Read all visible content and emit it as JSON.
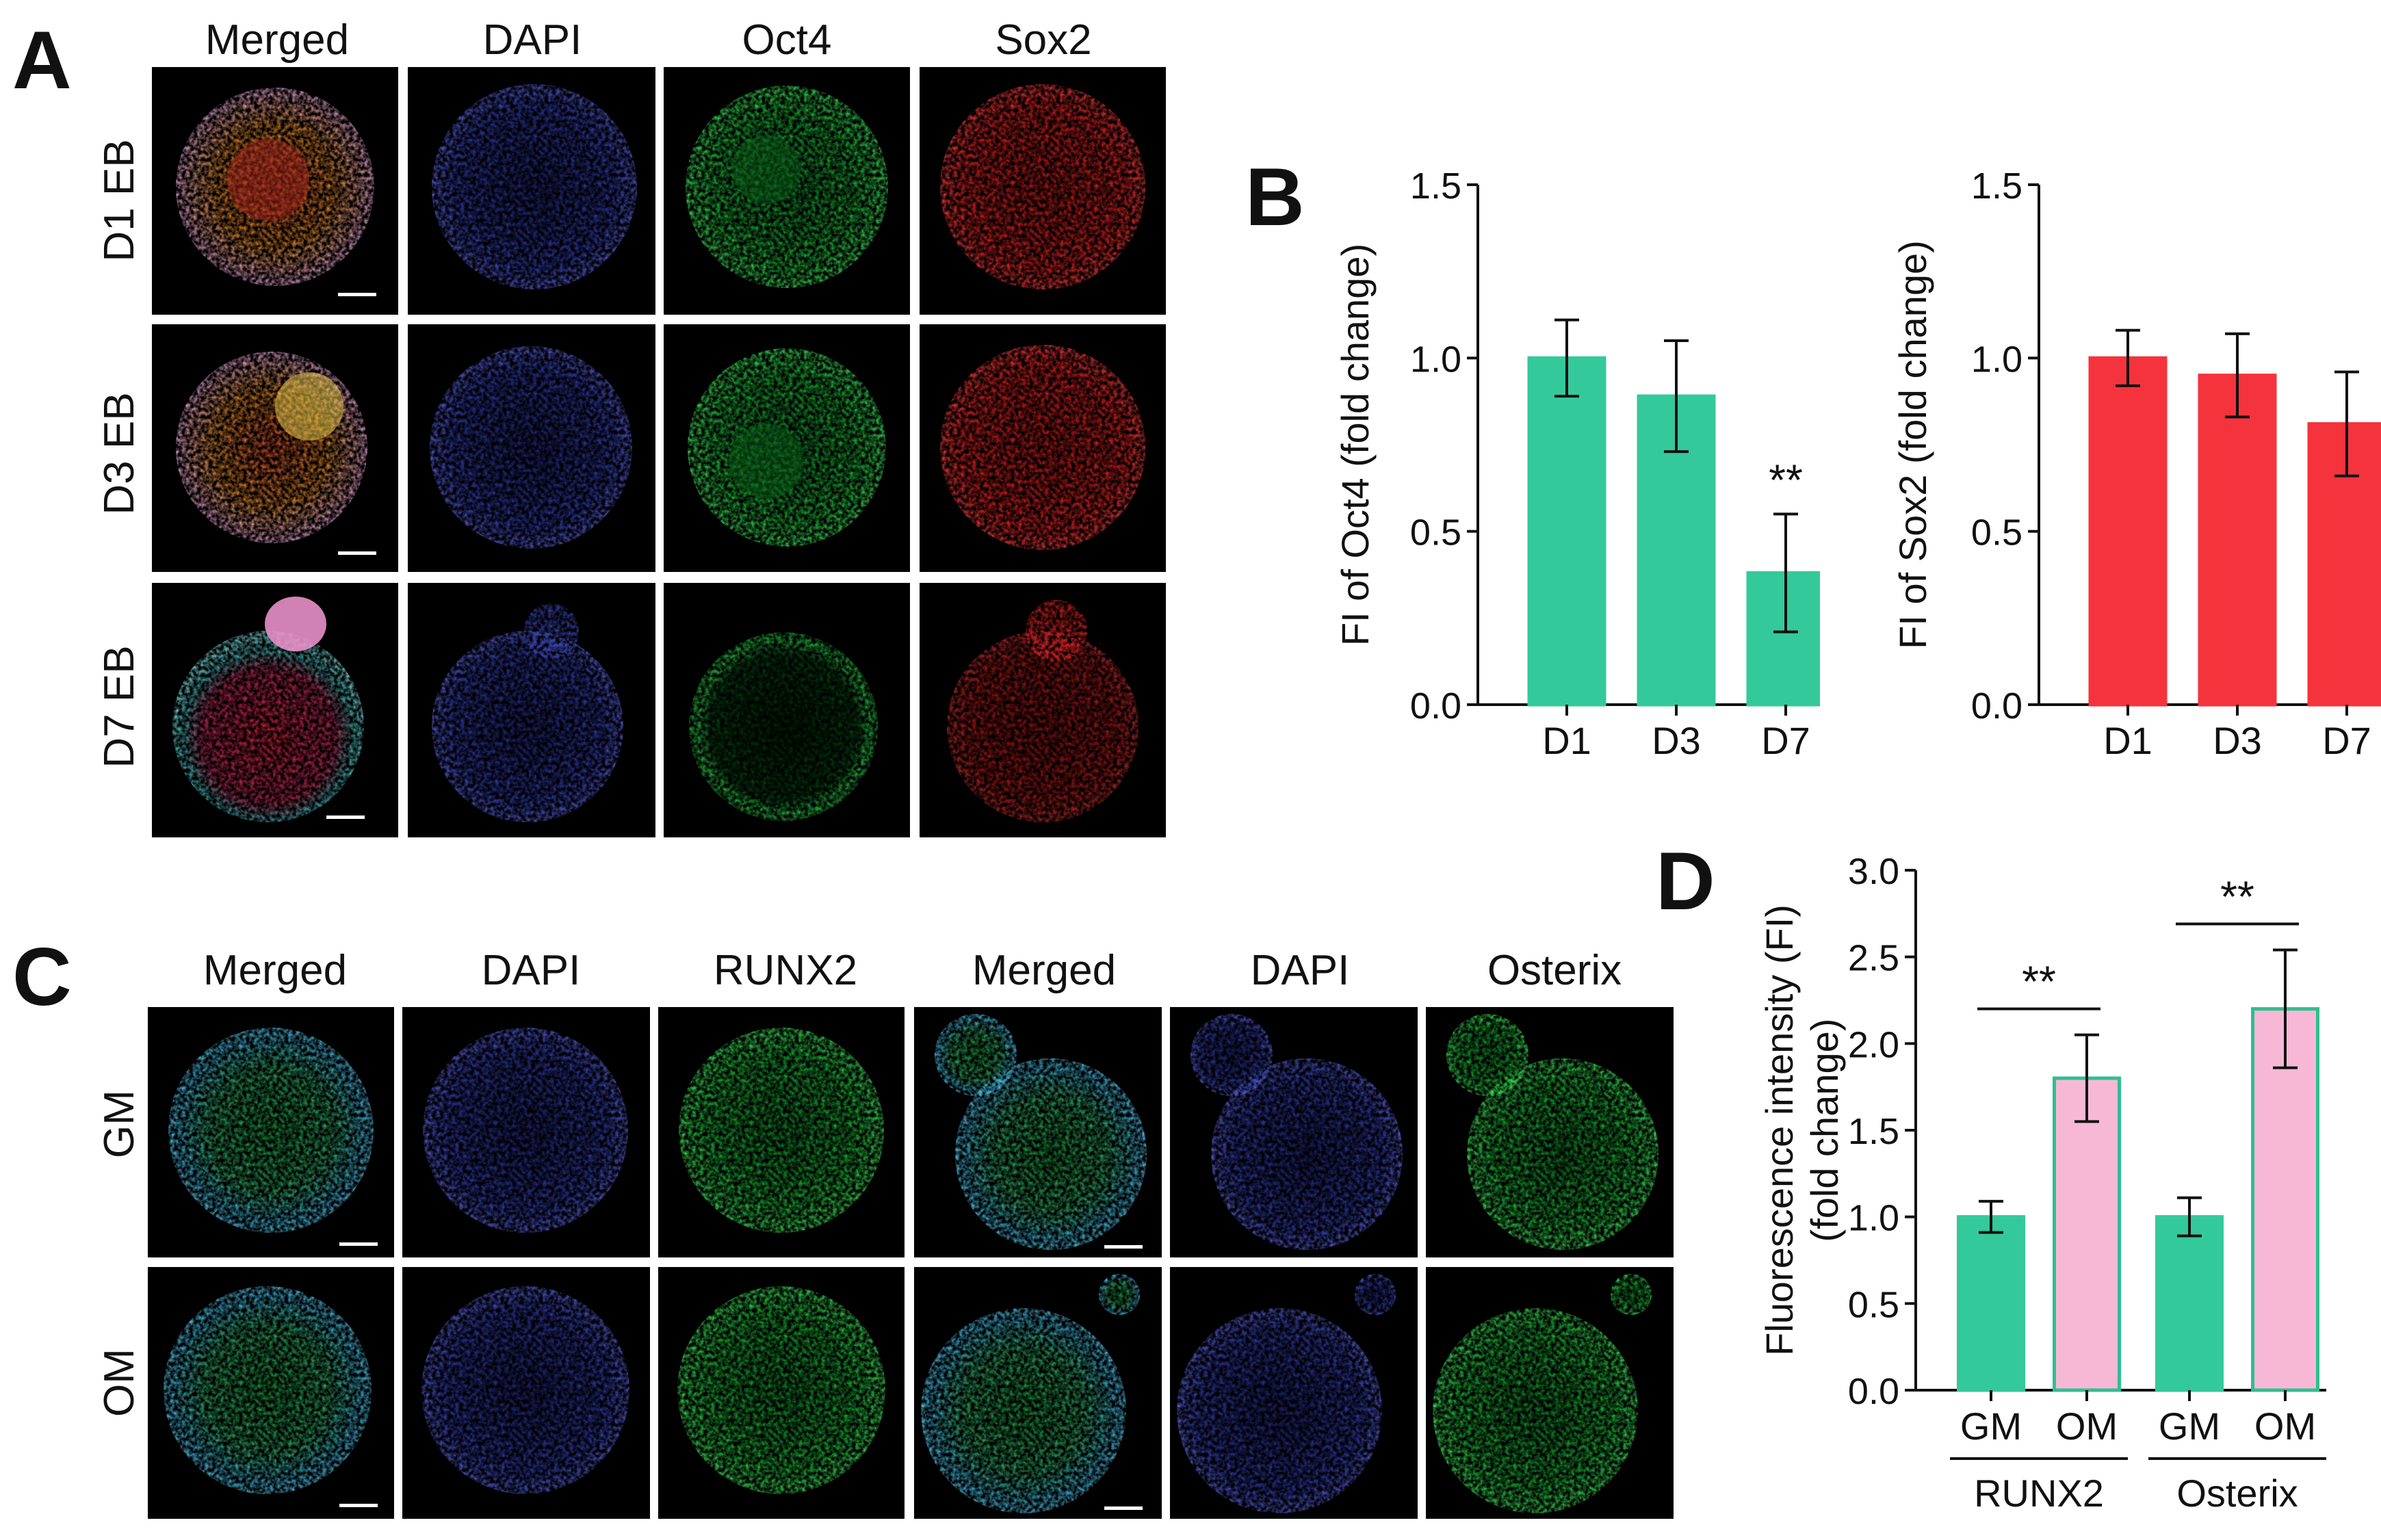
{
  "panel_labels": {
    "a": "A",
    "b": "B",
    "c": "C",
    "d": "D"
  },
  "panel_a": {
    "columns": [
      "Merged",
      "DAPI",
      "Oct4",
      "Sox2"
    ],
    "rows": [
      "D1 EB",
      "D3 EB",
      "D7 EB"
    ]
  },
  "panel_c": {
    "columns": [
      "Merged",
      "DAPI",
      "RUNX2",
      "Merged",
      "DAPI",
      "Osterix"
    ],
    "rows": [
      "GM",
      "OM"
    ]
  },
  "colors": {
    "green_bar": "#34c99a",
    "red_bar": "#f5333c",
    "pink_bar": "#f7b8d6",
    "pink_edge": "#2cc090"
  },
  "chart_data": [
    {
      "type": "bar",
      "categories": [
        "D1",
        "D3",
        "D7"
      ],
      "values": [
        1.0,
        0.89,
        0.38
      ],
      "errors": [
        0.11,
        0.16,
        0.17
      ],
      "ylabel": "FI of Oct4 (fold change)",
      "ylim": [
        0,
        1.5
      ],
      "yticks": [
        "0.0",
        "0.5",
        "1.0",
        "1.5"
      ],
      "annotations": [
        {
          "category": "D7",
          "text": "**"
        }
      ],
      "color": "#34c99a"
    },
    {
      "type": "bar",
      "categories": [
        "D1",
        "D3",
        "D7"
      ],
      "values": [
        1.0,
        0.95,
        0.81
      ],
      "errors": [
        0.08,
        0.12,
        0.15
      ],
      "ylabel": "FI of Sox2 (fold change)",
      "ylim": [
        0,
        1.5
      ],
      "yticks": [
        "0.0",
        "0.5",
        "1.0",
        "1.5"
      ],
      "color": "#f5333c"
    },
    {
      "type": "bar",
      "categories": [
        "GM",
        "OM",
        "GM",
        "OM"
      ],
      "groups": [
        "RUNX2",
        "Osterix"
      ],
      "values": [
        1.0,
        1.8,
        1.0,
        2.2
      ],
      "errors": [
        0.09,
        0.25,
        0.11,
        0.34
      ],
      "ylabel": "Fluorescence intensity (FI) (fold change)",
      "ylabel_lines": [
        "Fluorescence intensity (FI)",
        "(fold change)"
      ],
      "ylim": [
        0,
        3.0
      ],
      "yticks": [
        "0.0",
        "0.5",
        "1.0",
        "1.5",
        "2.0",
        "2.5",
        "3.0"
      ],
      "annotations": [
        {
          "group": "RUNX2",
          "text": "**"
        },
        {
          "group": "Osterix",
          "text": "**"
        }
      ]
    }
  ]
}
